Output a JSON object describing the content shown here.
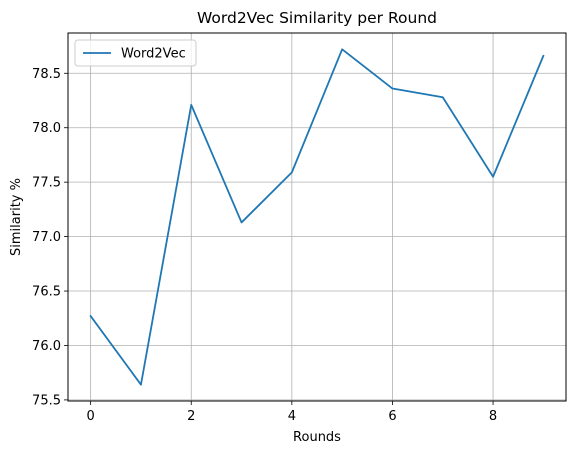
{
  "chart_data": {
    "type": "line",
    "title": "Word2Vec Similarity per Round",
    "xlabel": "Rounds",
    "ylabel": "Similarity %",
    "x": [
      0,
      1,
      2,
      3,
      4,
      5,
      6,
      7,
      8,
      9
    ],
    "series": [
      {
        "name": "Word2Vec",
        "color": "#1f77b4",
        "values": [
          76.27,
          75.64,
          78.21,
          77.13,
          77.59,
          78.72,
          78.36,
          78.28,
          77.55,
          78.66
        ]
      }
    ],
    "xlim": [
      -0.45,
      9.45
    ],
    "ylim": [
      75.49,
      78.87
    ],
    "xticks": [
      0,
      2,
      4,
      6,
      8
    ],
    "yticks": [
      75.5,
      76.0,
      76.5,
      77.0,
      77.5,
      78.0,
      78.5
    ],
    "ytick_labels": [
      "75.5",
      "76.0",
      "76.5",
      "77.0",
      "77.5",
      "78.0",
      "78.5"
    ],
    "grid": true,
    "legend_position": "top-left"
  }
}
